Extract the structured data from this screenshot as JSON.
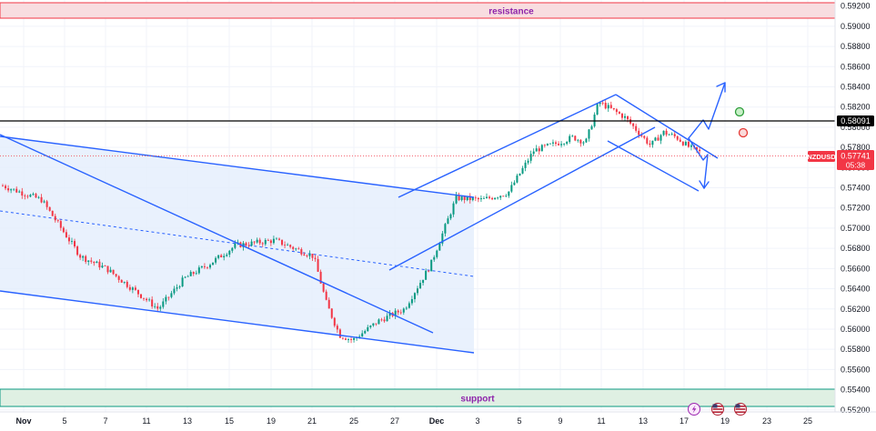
{
  "chart_data": {
    "type": "candlestick",
    "symbol": "NZDUSD",
    "title": "",
    "xlabel": "",
    "ylabel": "",
    "ylim": [
      0.5518,
      0.5926
    ],
    "y_ticks": [
      "0.59200",
      "0.59000",
      "0.58800",
      "0.58600",
      "0.58400",
      "0.58200",
      "0.58000",
      "0.57800",
      "0.57600",
      "0.57400",
      "0.57200",
      "0.57000",
      "0.56800",
      "0.56600",
      "0.56400",
      "0.56200",
      "0.56000",
      "0.55800",
      "0.55600",
      "0.55400",
      "0.55200"
    ],
    "x_ticks": [
      "Nov",
      "5",
      "7",
      "11",
      "13",
      "15",
      "19",
      "21",
      "25",
      "27",
      "Dec",
      "3",
      "5",
      "9",
      "11",
      "13",
      "17",
      "19",
      "23",
      "25"
    ],
    "grid": true,
    "resistance": {
      "label": "resistance",
      "from": 0.5907,
      "to": 0.5922
    },
    "support": {
      "label": "support",
      "from": 0.5527,
      "to": 0.5544
    },
    "horizontal_level": {
      "value": "0.58091"
    },
    "current_price": {
      "symbol": "NZDUSD",
      "value": "0.57741",
      "countdown": "05:38"
    },
    "close_series": {
      "anchors_x_index": [
        0,
        3,
        6,
        8,
        10,
        12,
        14,
        16,
        18,
        21,
        24,
        25,
        26,
        27,
        29,
        31,
        33,
        35,
        37,
        39,
        41,
        43,
        44,
        45,
        46,
        48,
        50,
        51,
        52,
        53,
        54
      ],
      "anchors_close": [
        0.5742,
        0.5728,
        0.5672,
        0.566,
        0.564,
        0.562,
        0.565,
        0.5665,
        0.5683,
        0.5688,
        0.5672,
        0.5625,
        0.5594,
        0.5589,
        0.5608,
        0.562,
        0.5663,
        0.573,
        0.5728,
        0.5735,
        0.5777,
        0.5785,
        0.579,
        0.5785,
        0.5825,
        0.581,
        0.5782,
        0.5795,
        0.579,
        0.578,
        0.5774
      ],
      "count": 55
    },
    "x_domain": [
      0,
      60
    ]
  },
  "icons": {
    "flash_icon_color": "#9c27b0",
    "us_flag_icon_colors": [
      "#b22234",
      "#3c3b6e"
    ]
  },
  "colors": {
    "up_candle": "#089981",
    "down_candle": "#f23645",
    "trendline": "#2962ff",
    "channel_fill": "#e3eefc",
    "resistance_fill": "#f8dde0",
    "resistance_border": "#f23645",
    "support_fill": "#dff0e3",
    "support_border": "#089981",
    "zone_text": "#8e24aa",
    "price_label": "#f23645",
    "level_label": "#000000"
  }
}
